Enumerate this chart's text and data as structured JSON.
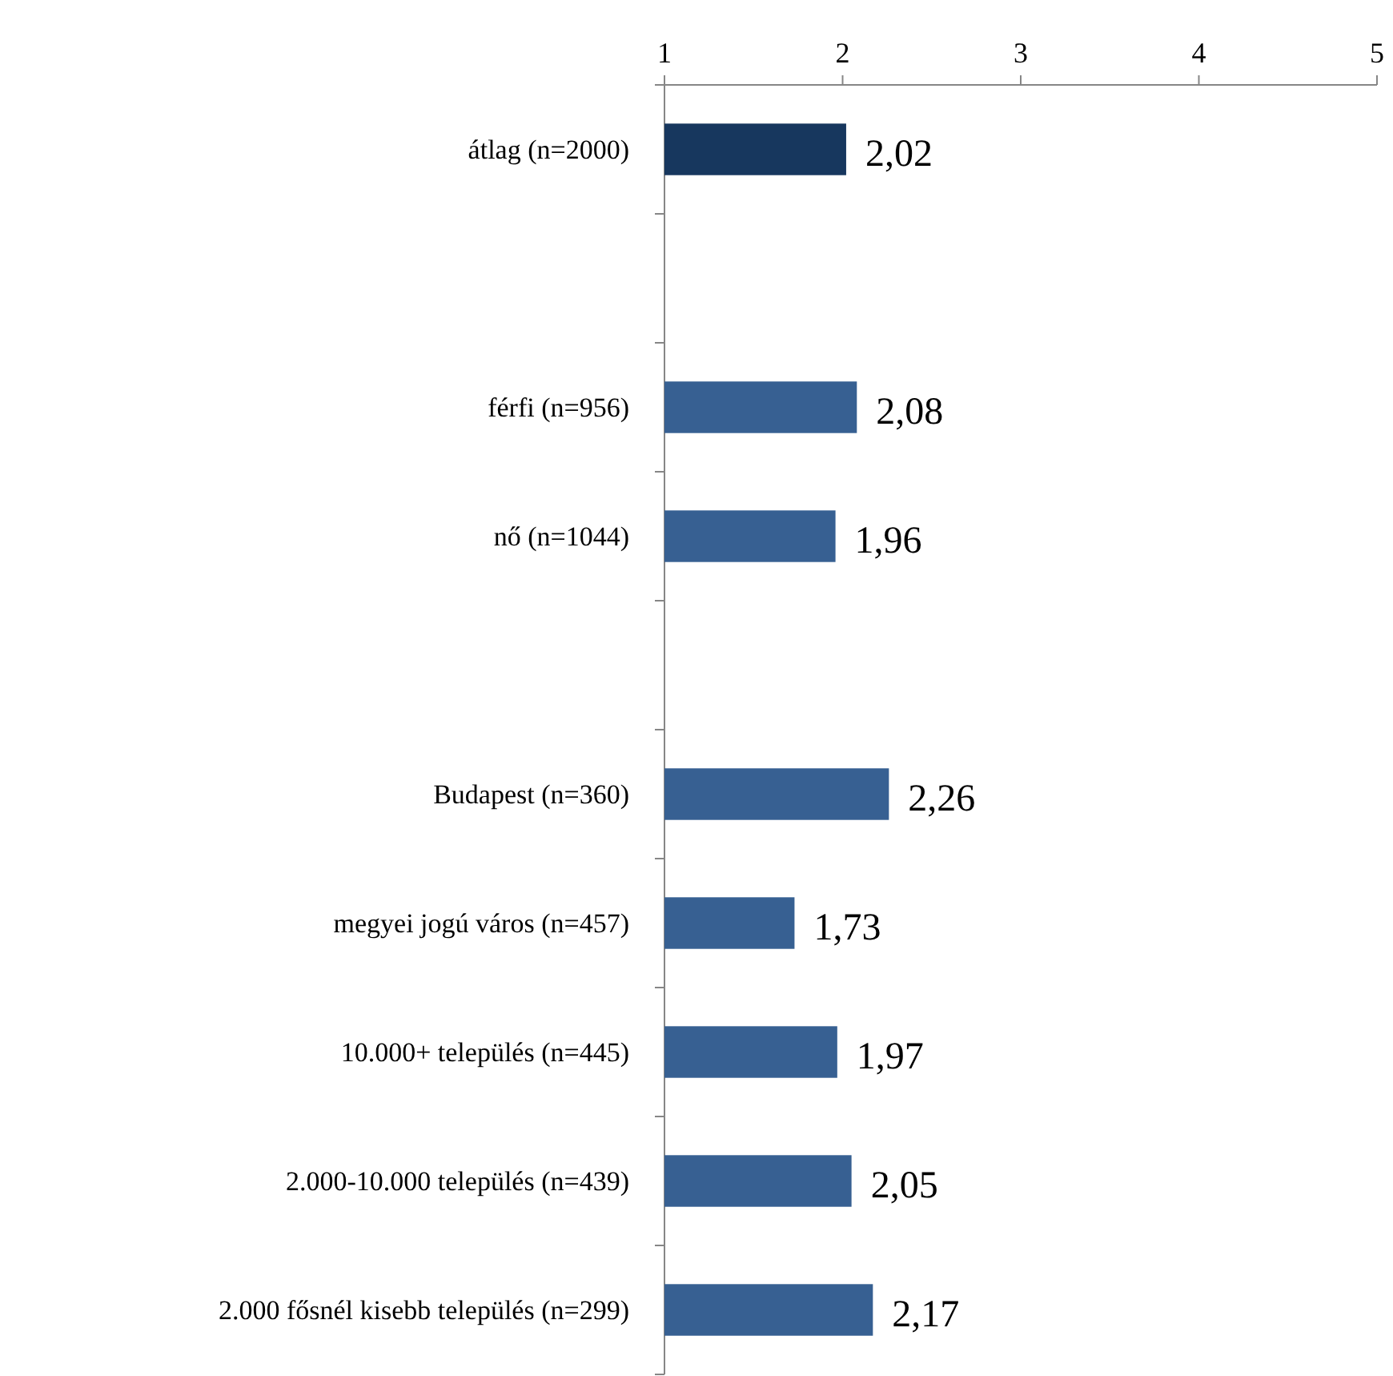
{
  "chart_data": {
    "type": "bar",
    "orientation": "horizontal",
    "categories": [
      "átlag (n=2000)",
      null,
      "férfi (n=956)",
      "nő (n=1044)",
      null,
      "Budapest (n=360)",
      "megyei jogú város (n=457)",
      "10.000+ település (n=445)",
      "2.000-10.000 település (n=439)",
      "2.000 fősnél kisebb település (n=299)"
    ],
    "values": [
      2.02,
      null,
      2.08,
      1.96,
      null,
      2.26,
      1.73,
      1.97,
      2.05,
      2.17
    ],
    "colors": [
      "#17375e",
      null,
      "#376092",
      "#376092",
      null,
      "#376092",
      "#376092",
      "#376092",
      "#376092",
      "#376092"
    ],
    "value_labels": [
      "2,02",
      null,
      "2,08",
      "1,96",
      null,
      "2,26",
      "1,73",
      "1,97",
      "2,05",
      "2,17"
    ],
    "xlim": [
      1,
      5
    ],
    "xticks": [
      1,
      2,
      3,
      4,
      5
    ],
    "grid": false
  }
}
